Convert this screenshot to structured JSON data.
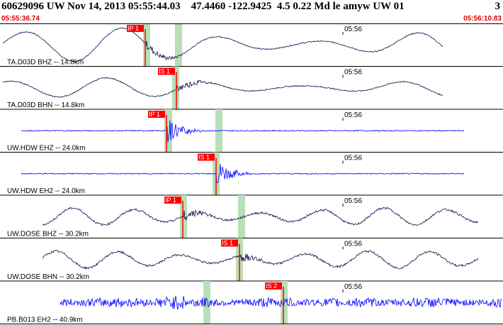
{
  "header": {
    "title": "60629096 UW Nov 14, 2013 05:55:44.03    47.4460 -122.9425  4.5 0.22 Md le amyw UW 01",
    "page": "3",
    "start_time": "05:55:36.74",
    "end_time": "05:56:10.83"
  },
  "colors": {
    "pick": "#ff0000",
    "window": "#b8e0b8",
    "trace_bh": "#1a0a4a",
    "trace_eh": "#0000ff",
    "separator": "#000000"
  },
  "traces": [
    {
      "label": "TA.D03D BHZ -- 14.8km",
      "time_mark": "05:56",
      "pick": "IP 1",
      "color_key": "trace_bh",
      "kind": "lowfreq"
    },
    {
      "label": "TA.D03D BHN -- 14.8km",
      "time_mark": "05:56",
      "pick": "IS 1",
      "color_key": "trace_bh",
      "kind": "lowfreq"
    },
    {
      "label": "UW.HDW EHZ -- 24.0km",
      "time_mark": "05:56",
      "pick": "IP 1",
      "color_key": "trace_eh",
      "kind": "flat"
    },
    {
      "label": "UW.HDW EH2 -- 24.0km",
      "time_mark": "05:56",
      "pick": "IS 1",
      "color_key": "trace_eh",
      "kind": "flat"
    },
    {
      "label": "UW.DOSE BHZ -- 30.2km",
      "time_mark": "05:56",
      "pick": "IP 1",
      "color_key": "trace_bh",
      "kind": "midfreq"
    },
    {
      "label": "UW.DOSE BHN -- 30.2km",
      "time_mark": "05:56",
      "pick": "IS 1",
      "color_key": "trace_bh",
      "kind": "midfreq"
    },
    {
      "label": "PB.B013 EH2 -- 40.9km",
      "time_mark": "05:56",
      "pick": "IS 2",
      "color_key": "trace_eh",
      "kind": "noisy"
    }
  ]
}
